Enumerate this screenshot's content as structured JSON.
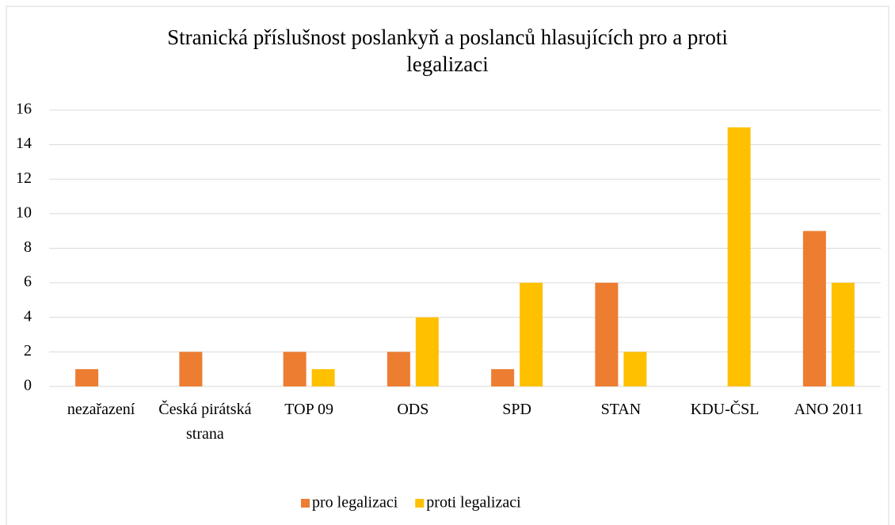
{
  "chart_data": {
    "type": "bar",
    "title": "Stranická příslušnost poslankyň a poslanců hlasujících pro a proti legalizaci",
    "categories": [
      "nezařazení",
      "Česká pirátská strana",
      "TOP 09",
      "ODS",
      "SPD",
      "STAN",
      "KDU-ČSL",
      "ANO 2011"
    ],
    "series": [
      {
        "name": "pro legalizaci",
        "color": "#ed7d31",
        "values": [
          1,
          2,
          2,
          2,
          1,
          6,
          0,
          9
        ]
      },
      {
        "name": "proti legalizaci",
        "color": "#ffc000",
        "values": [
          0,
          0,
          1,
          4,
          6,
          2,
          15,
          6
        ]
      }
    ],
    "ylim": [
      0,
      16
    ],
    "yticks": [
      0,
      2,
      4,
      6,
      8,
      10,
      12,
      14,
      16
    ],
    "grid": true,
    "legend": "bottom"
  }
}
